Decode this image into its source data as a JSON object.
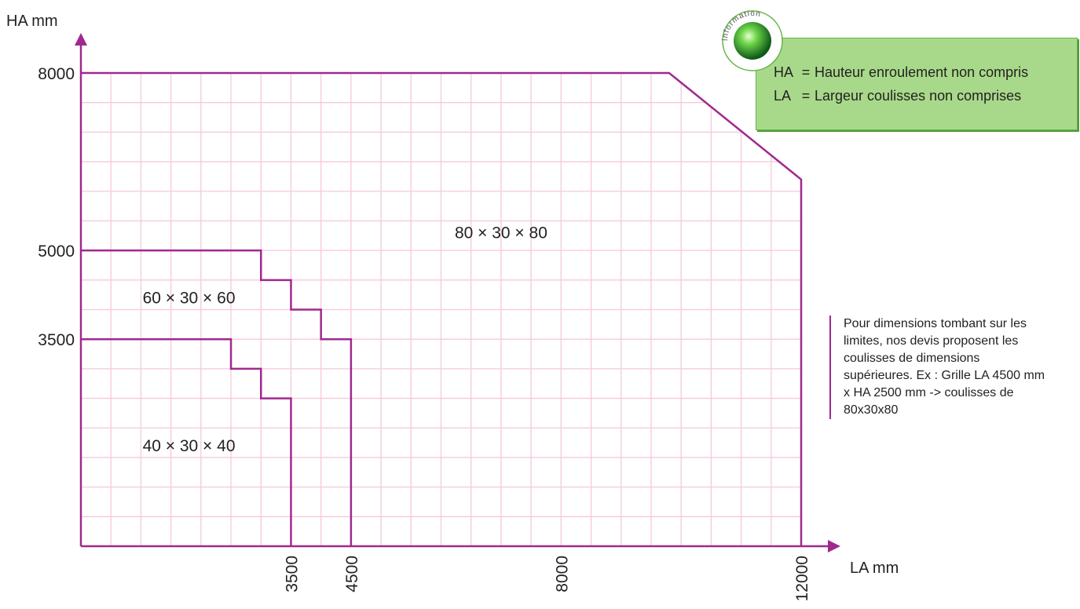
{
  "chart_data": {
    "type": "area",
    "xlabel": "LA mm",
    "ylabel": "HA mm",
    "x_ticks": [
      3500,
      4500,
      8000,
      12000
    ],
    "y_ticks": [
      3500,
      5000,
      8000
    ],
    "xlim": [
      0,
      12000
    ],
    "ylim": [
      0,
      8000
    ],
    "grid": true,
    "regions": [
      {
        "name": "40 × 30 × 40",
        "boundary": [
          [
            0,
            3500
          ],
          [
            2500,
            3500
          ],
          [
            2500,
            3000
          ],
          [
            3000,
            3000
          ],
          [
            3000,
            2500
          ],
          [
            3500,
            2500
          ],
          [
            3500,
            0
          ]
        ]
      },
      {
        "name": "60 × 30 × 60",
        "boundary": [
          [
            0,
            5000
          ],
          [
            3000,
            5000
          ],
          [
            3000,
            4500
          ],
          [
            3500,
            4500
          ],
          [
            3500,
            4000
          ],
          [
            4000,
            4000
          ],
          [
            4000,
            3500
          ],
          [
            4500,
            3500
          ],
          [
            4500,
            0
          ]
        ]
      },
      {
        "name": "80 × 30 × 80",
        "boundary": [
          [
            0,
            8000
          ],
          [
            9800,
            8000
          ],
          [
            12000,
            6200
          ],
          [
            12000,
            0
          ]
        ]
      }
    ]
  },
  "info": {
    "badge_text": "information",
    "lines": [
      {
        "key": "HA",
        "eq": "=",
        "text": "Hauteur enroulement non compris"
      },
      {
        "key": "LA",
        "eq": "=",
        "text": "Largeur coulisses non comprises"
      }
    ]
  },
  "note": "Pour dimensions tombant sur les limites, nos devis proposent les coulisses de dimensions supérieures. Ex : Grille LA 4500 mm x HA 2500 mm -> coulisses de 80x30x80",
  "colors": {
    "line": "#a0298e",
    "grid": "#f4c9dd",
    "info_bg": "#a8d98a",
    "info_border": "#63b347"
  }
}
